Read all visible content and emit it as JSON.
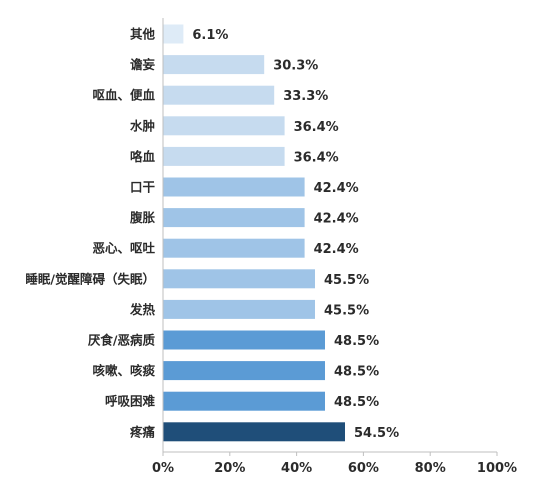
{
  "chart_data": {
    "type": "bar",
    "orientation": "horizontal",
    "categories": [
      "其他",
      "谵妄",
      "呕血、便血",
      "水肿",
      "咯血",
      "口干",
      "腹胀",
      "恶心、呕吐",
      "睡眠/觉醒障碍（失眠）",
      "发热",
      "厌食/恶病质",
      "咳嗽、咳痰",
      "呼吸困难",
      "疼痛"
    ],
    "values": [
      6.1,
      30.3,
      33.3,
      36.4,
      36.4,
      42.4,
      42.4,
      42.4,
      45.5,
      45.5,
      48.5,
      48.5,
      48.5,
      54.5
    ],
    "value_labels": [
      "6.1%",
      "30.3%",
      "33.3%",
      "36.4%",
      "36.4%",
      "42.4%",
      "42.4%",
      "42.4%",
      "45.5%",
      "45.5%",
      "48.5%",
      "48.5%",
      "48.5%",
      "54.5%"
    ],
    "bar_colors": [
      "#deebf7",
      "#c6dbef",
      "#c6dbef",
      "#c6dbef",
      "#c6dbef",
      "#9fc4e7",
      "#9fc4e7",
      "#9fc4e7",
      "#9fc4e7",
      "#9fc4e7",
      "#5b9bd5",
      "#5b9bd5",
      "#5b9bd5",
      "#1f4e79"
    ],
    "xlim": [
      0,
      100
    ],
    "x_ticks": [
      0,
      20,
      40,
      60,
      80,
      100
    ],
    "x_tick_labels": [
      "0%",
      "20%",
      "40%",
      "60%",
      "80%",
      "100%"
    ],
    "grid": false,
    "title": "",
    "xlabel": "",
    "ylabel": ""
  }
}
